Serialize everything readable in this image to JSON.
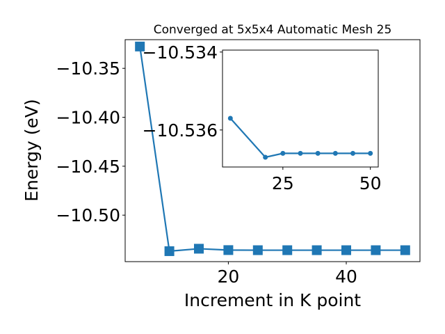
{
  "chart_data": [
    {
      "type": "line",
      "title": "Converged at 5x5x4 Automatic Mesh 25",
      "xlabel": "Increment in K point",
      "ylabel": "Energy (eV)",
      "xlim": [
        2.5,
        52.5
      ],
      "ylim": [
        -10.5475,
        -10.3207
      ],
      "xticks": [
        20,
        40
      ],
      "xtick_labels": [
        "20",
        "40"
      ],
      "yticks": [
        -10.35,
        -10.4,
        -10.45,
        -10.5
      ],
      "ytick_labels": [
        "−10.35",
        "−10.40",
        "−10.45",
        "−10.50"
      ],
      "grid": false,
      "marker": "square",
      "color": "#1f77b4",
      "series": [
        {
          "x": [
            5,
            10,
            15,
            20,
            25,
            30,
            35,
            40,
            45,
            50
          ],
          "y": [
            -10.3277,
            -10.5368,
            -10.5343,
            -10.5357,
            -10.5358,
            -10.5358,
            -10.5358,
            -10.5358,
            -10.5358,
            -10.5358
          ]
        }
      ]
    },
    {
      "type": "line",
      "title": "",
      "xlabel": "",
      "ylabel": "",
      "xlim": [
        7.75,
        52.25
      ],
      "ylim": [
        -10.53695,
        -10.53395
      ],
      "xticks": [
        25,
        50
      ],
      "xtick_labels": [
        "25",
        "50"
      ],
      "yticks": [
        -10.536,
        -10.534
      ],
      "ytick_labels": [
        "−10.536",
        "−10.534"
      ],
      "grid": false,
      "marker": "circle",
      "color": "#1f77b4",
      "series": [
        {
          "x": [
            10,
            20,
            25,
            30,
            35,
            40,
            45,
            50
          ],
          "y": [
            -10.5357,
            -10.5367,
            -10.5366,
            -10.5366,
            -10.5366,
            -10.5366,
            -10.5366,
            -10.5366
          ]
        }
      ]
    }
  ]
}
